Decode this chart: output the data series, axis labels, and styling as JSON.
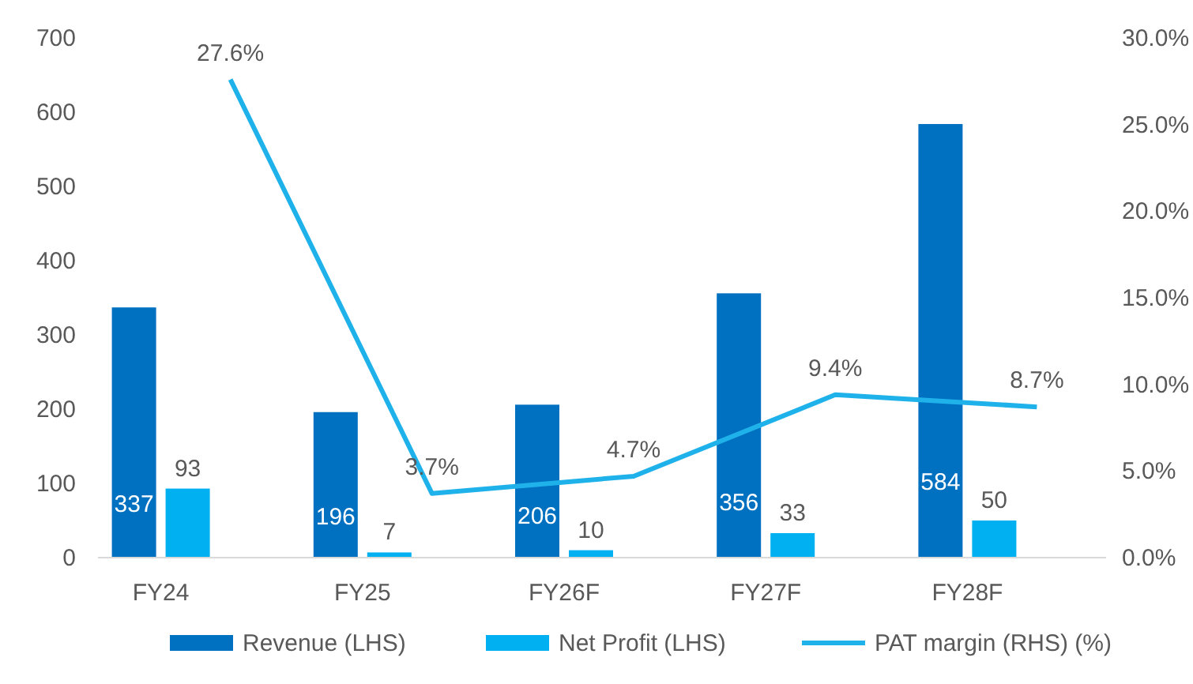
{
  "chart_data": {
    "type": "bar",
    "categories": [
      "FY24",
      "FY25",
      "FY26F",
      "FY27F",
      "FY28F"
    ],
    "series": [
      {
        "name": "Revenue (LHS)",
        "color": "#0070c0",
        "values": [
          337,
          196,
          206,
          356,
          584
        ]
      },
      {
        "name": "Net Profit (LHS)",
        "color": "#00b0f0",
        "values": [
          93,
          7,
          10,
          33,
          50
        ]
      },
      {
        "name": "PAT margin (RHS) (%)",
        "type": "line",
        "axis": "y2",
        "color": "#1fb2ea",
        "values": [
          27.6,
          3.7,
          4.7,
          9.4,
          8.7
        ],
        "value_labels": [
          "27.6%",
          "3.7%",
          "4.7%",
          "9.4%",
          "8.7%"
        ]
      }
    ],
    "ylim": [
      0,
      700
    ],
    "yticks": [
      0,
      100,
      200,
      300,
      400,
      500,
      600,
      700
    ],
    "y2lim": [
      0,
      30
    ],
    "y2ticks": [
      {
        "value": 0,
        "label": "0.0%"
      },
      {
        "value": 5,
        "label": "5.0%"
      },
      {
        "value": 10,
        "label": "10.0%"
      },
      {
        "value": 15,
        "label": "15.0%"
      },
      {
        "value": 20,
        "label": "20.0%"
      },
      {
        "value": 25,
        "label": "25.0%"
      },
      {
        "value": 30,
        "label": "30.0%"
      }
    ],
    "data_labels": true,
    "grid": false,
    "legend": "bottom",
    "marker": "none"
  }
}
